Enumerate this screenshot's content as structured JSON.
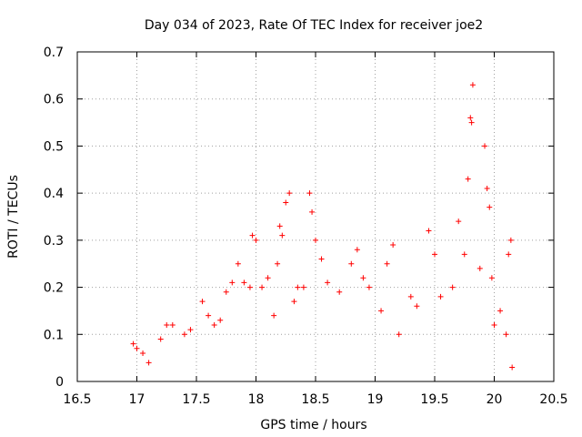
{
  "chart_data": {
    "type": "scatter",
    "title": "Day 034 of 2023, Rate Of TEC Index for receiver joe2",
    "xlabel": "GPS time / hours",
    "ylabel": "ROTI / TECUs",
    "xlim": [
      16.5,
      20.5
    ],
    "ylim": [
      0,
      0.7
    ],
    "xticks": [
      16.5,
      17,
      17.5,
      18,
      18.5,
      19,
      19.5,
      20,
      20.5
    ],
    "xtick_labels": [
      "16.5",
      "17",
      "17.5",
      "18",
      "18.5",
      "19",
      "19.5",
      "20",
      "20.5"
    ],
    "yticks": [
      0,
      0.1,
      0.2,
      0.3,
      0.4,
      0.5,
      0.6,
      0.7
    ],
    "ytick_labels": [
      "0",
      "0.1",
      "0.2",
      "0.3",
      "0.4",
      "0.5",
      "0.6",
      "0.7"
    ],
    "grid": true,
    "marker": "+",
    "color": "#ff0000",
    "series": [
      {
        "name": "ROTI",
        "points": [
          [
            16.97,
            0.08
          ],
          [
            17.0,
            0.07
          ],
          [
            17.05,
            0.06
          ],
          [
            17.1,
            0.04
          ],
          [
            17.2,
            0.09
          ],
          [
            17.25,
            0.12
          ],
          [
            17.3,
            0.12
          ],
          [
            17.4,
            0.1
          ],
          [
            17.45,
            0.11
          ],
          [
            17.55,
            0.17
          ],
          [
            17.6,
            0.14
          ],
          [
            17.65,
            0.12
          ],
          [
            17.7,
            0.13
          ],
          [
            17.75,
            0.19
          ],
          [
            17.8,
            0.21
          ],
          [
            17.85,
            0.25
          ],
          [
            17.9,
            0.21
          ],
          [
            17.95,
            0.2
          ],
          [
            17.97,
            0.31
          ],
          [
            18.0,
            0.3
          ],
          [
            18.05,
            0.2
          ],
          [
            18.1,
            0.22
          ],
          [
            18.15,
            0.14
          ],
          [
            18.18,
            0.25
          ],
          [
            18.2,
            0.33
          ],
          [
            18.22,
            0.31
          ],
          [
            18.25,
            0.38
          ],
          [
            18.28,
            0.4
          ],
          [
            18.32,
            0.17
          ],
          [
            18.35,
            0.2
          ],
          [
            18.4,
            0.2
          ],
          [
            18.45,
            0.4
          ],
          [
            18.47,
            0.36
          ],
          [
            18.5,
            0.3
          ],
          [
            18.55,
            0.26
          ],
          [
            18.6,
            0.21
          ],
          [
            18.7,
            0.19
          ],
          [
            18.8,
            0.25
          ],
          [
            18.85,
            0.28
          ],
          [
            18.9,
            0.22
          ],
          [
            18.95,
            0.2
          ],
          [
            19.05,
            0.15
          ],
          [
            19.1,
            0.25
          ],
          [
            19.15,
            0.29
          ],
          [
            19.2,
            0.1
          ],
          [
            19.3,
            0.18
          ],
          [
            19.35,
            0.16
          ],
          [
            19.45,
            0.32
          ],
          [
            19.5,
            0.27
          ],
          [
            19.55,
            0.18
          ],
          [
            19.65,
            0.2
          ],
          [
            19.7,
            0.34
          ],
          [
            19.75,
            0.27
          ],
          [
            19.8,
            0.56
          ],
          [
            19.81,
            0.55
          ],
          [
            19.82,
            0.63
          ],
          [
            19.78,
            0.43
          ],
          [
            19.88,
            0.24
          ],
          [
            19.92,
            0.5
          ],
          [
            19.94,
            0.41
          ],
          [
            19.96,
            0.37
          ],
          [
            19.98,
            0.22
          ],
          [
            20.0,
            0.12
          ],
          [
            20.05,
            0.15
          ],
          [
            20.1,
            0.1
          ],
          [
            20.12,
            0.27
          ],
          [
            20.14,
            0.3
          ],
          [
            20.15,
            0.03
          ]
        ]
      }
    ]
  }
}
